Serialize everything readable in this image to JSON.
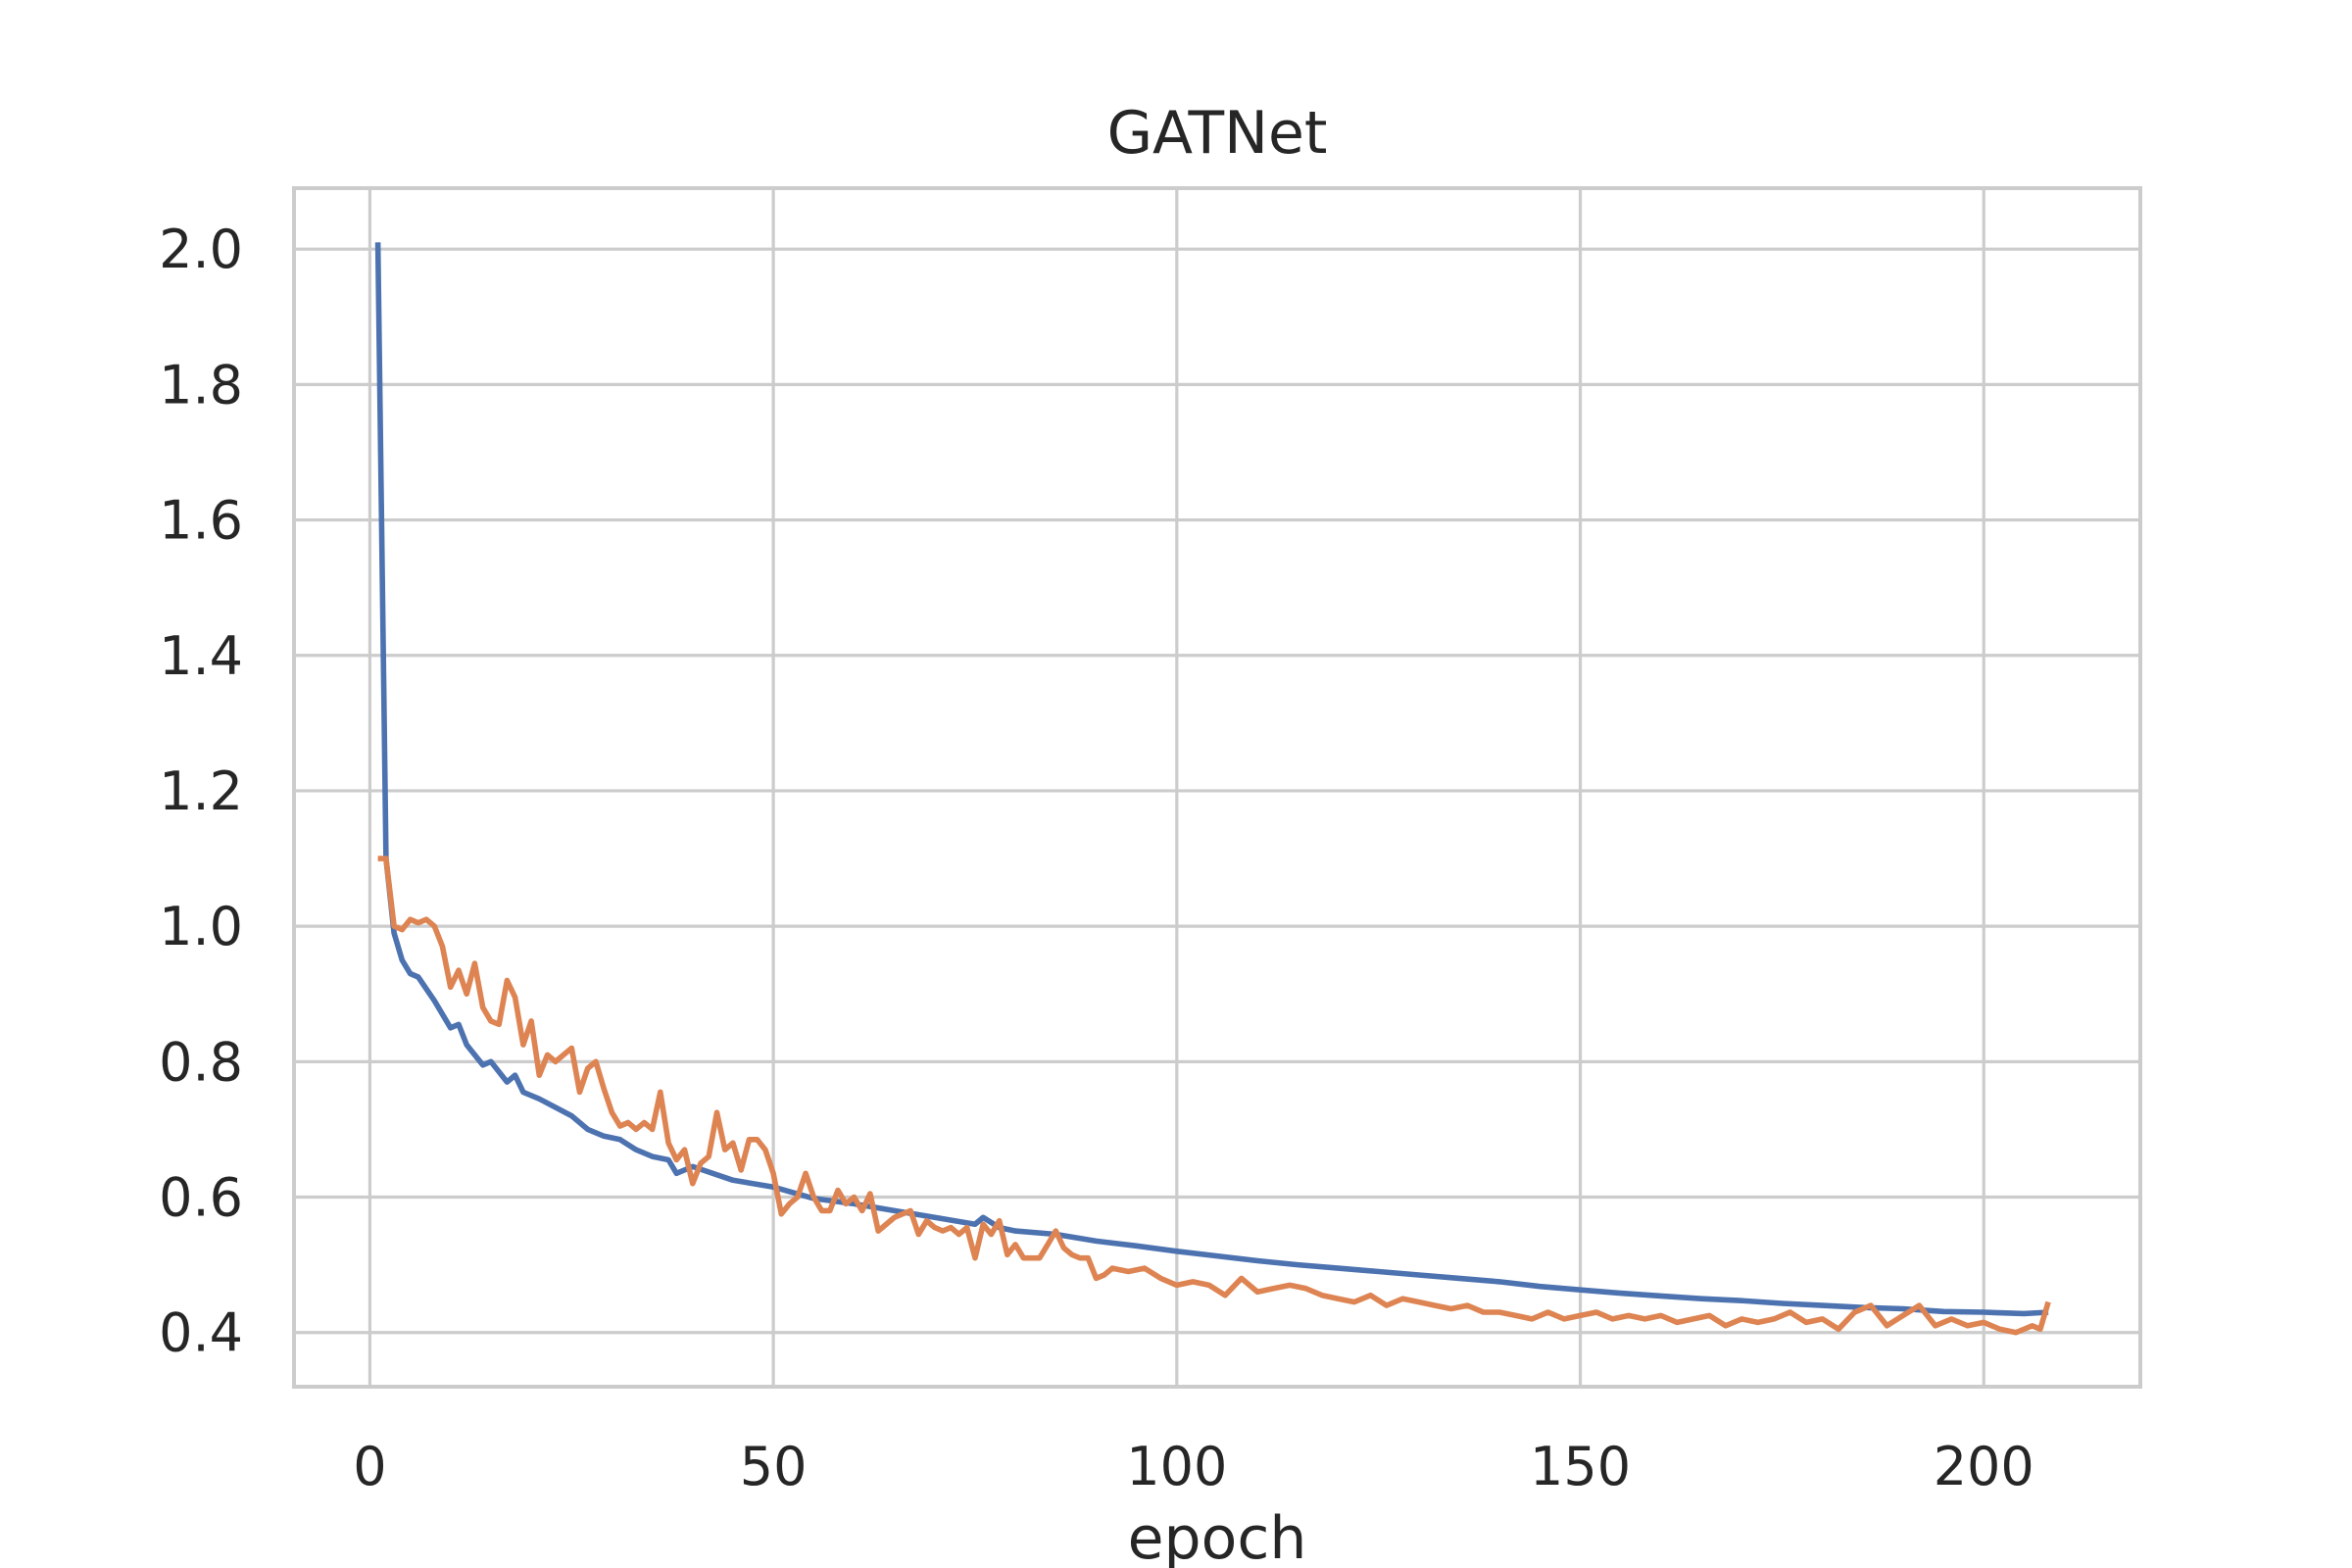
{
  "chart_data": {
    "type": "line",
    "title": "GATNet",
    "xlabel": "epoch",
    "ylabel": "",
    "xlim": [
      -9.4,
      219.4
    ],
    "ylim": [
      0.32,
      2.09
    ],
    "xticks": [
      0,
      50,
      100,
      150,
      200
    ],
    "yticks": [
      0.4,
      0.6,
      0.8,
      1.0,
      1.2,
      1.4,
      1.6,
      1.8,
      2.0
    ],
    "xtick_labels": [
      "0",
      "50",
      "100",
      "150",
      "200"
    ],
    "ytick_labels": [
      "0.4",
      "0.6",
      "0.8",
      "1.0",
      "1.2",
      "1.4",
      "1.6",
      "1.8",
      "2.0"
    ],
    "grid": true,
    "legend": "none",
    "series": [
      {
        "color": "#4c72b0",
        "points": [
          [
            1,
            2.01
          ],
          [
            2,
            1.1
          ],
          [
            3,
            0.99
          ],
          [
            4,
            0.95
          ],
          [
            5,
            0.93
          ],
          [
            6,
            0.925
          ],
          [
            8,
            0.89
          ],
          [
            10,
            0.85
          ],
          [
            11,
            0.855
          ],
          [
            12,
            0.825
          ],
          [
            14,
            0.795
          ],
          [
            15,
            0.8
          ],
          [
            17,
            0.77
          ],
          [
            18,
            0.78
          ],
          [
            19,
            0.755
          ],
          [
            21,
            0.745
          ],
          [
            25,
            0.72
          ],
          [
            27,
            0.7
          ],
          [
            29,
            0.69
          ],
          [
            31,
            0.685
          ],
          [
            33,
            0.67
          ],
          [
            35,
            0.66
          ],
          [
            37,
            0.655
          ],
          [
            38,
            0.635
          ],
          [
            40,
            0.645
          ],
          [
            45,
            0.625
          ],
          [
            50,
            0.615
          ],
          [
            55,
            0.598
          ],
          [
            60,
            0.59
          ],
          [
            65,
            0.58
          ],
          [
            70,
            0.57
          ],
          [
            75,
            0.56
          ],
          [
            76,
            0.57
          ],
          [
            78,
            0.555
          ],
          [
            80,
            0.55
          ],
          [
            85,
            0.545
          ],
          [
            90,
            0.535
          ],
          [
            95,
            0.528
          ],
          [
            100,
            0.52
          ],
          [
            105,
            0.513
          ],
          [
            110,
            0.506
          ],
          [
            115,
            0.5
          ],
          [
            120,
            0.495
          ],
          [
            125,
            0.49
          ],
          [
            130,
            0.485
          ],
          [
            135,
            0.48
          ],
          [
            140,
            0.475
          ],
          [
            145,
            0.468
          ],
          [
            150,
            0.463
          ],
          [
            155,
            0.458
          ],
          [
            160,
            0.454
          ],
          [
            165,
            0.45
          ],
          [
            170,
            0.447
          ],
          [
            175,
            0.443
          ],
          [
            180,
            0.44
          ],
          [
            185,
            0.437
          ],
          [
            190,
            0.435
          ],
          [
            195,
            0.431
          ],
          [
            200,
            0.43
          ],
          [
            205,
            0.428
          ],
          [
            208,
            0.43
          ]
        ]
      },
      {
        "color": "#dd8452",
        "points": [
          [
            1,
            1.1
          ],
          [
            2,
            1.1
          ],
          [
            3,
            1.0
          ],
          [
            4,
            0.995
          ],
          [
            5,
            1.01
          ],
          [
            6,
            1.005
          ],
          [
            7,
            1.01
          ],
          [
            8,
            1.0
          ],
          [
            9,
            0.97
          ],
          [
            10,
            0.91
          ],
          [
            11,
            0.935
          ],
          [
            12,
            0.9
          ],
          [
            13,
            0.945
          ],
          [
            14,
            0.88
          ],
          [
            15,
            0.86
          ],
          [
            16,
            0.855
          ],
          [
            17,
            0.92
          ],
          [
            18,
            0.895
          ],
          [
            19,
            0.825
          ],
          [
            20,
            0.86
          ],
          [
            21,
            0.78
          ],
          [
            22,
            0.81
          ],
          [
            23,
            0.8
          ],
          [
            24,
            0.81
          ],
          [
            25,
            0.82
          ],
          [
            26,
            0.755
          ],
          [
            27,
            0.79
          ],
          [
            28,
            0.8
          ],
          [
            29,
            0.76
          ],
          [
            30,
            0.725
          ],
          [
            31,
            0.705
          ],
          [
            32,
            0.71
          ],
          [
            33,
            0.7
          ],
          [
            34,
            0.71
          ],
          [
            35,
            0.7
          ],
          [
            36,
            0.755
          ],
          [
            37,
            0.68
          ],
          [
            38,
            0.655
          ],
          [
            39,
            0.67
          ],
          [
            40,
            0.62
          ],
          [
            41,
            0.65
          ],
          [
            42,
            0.66
          ],
          [
            43,
            0.725
          ],
          [
            44,
            0.67
          ],
          [
            45,
            0.68
          ],
          [
            46,
            0.64
          ],
          [
            47,
            0.685
          ],
          [
            48,
            0.685
          ],
          [
            49,
            0.67
          ],
          [
            50,
            0.635
          ],
          [
            51,
            0.575
          ],
          [
            52,
            0.59
          ],
          [
            53,
            0.6
          ],
          [
            54,
            0.635
          ],
          [
            55,
            0.6
          ],
          [
            56,
            0.58
          ],
          [
            57,
            0.58
          ],
          [
            58,
            0.61
          ],
          [
            59,
            0.59
          ],
          [
            60,
            0.6
          ],
          [
            61,
            0.58
          ],
          [
            62,
            0.605
          ],
          [
            63,
            0.55
          ],
          [
            64,
            0.56
          ],
          [
            65,
            0.57
          ],
          [
            66,
            0.575
          ],
          [
            67,
            0.58
          ],
          [
            68,
            0.545
          ],
          [
            69,
            0.565
          ],
          [
            70,
            0.555
          ],
          [
            71,
            0.55
          ],
          [
            72,
            0.555
          ],
          [
            73,
            0.545
          ],
          [
            74,
            0.555
          ],
          [
            75,
            0.51
          ],
          [
            76,
            0.56
          ],
          [
            77,
            0.545
          ],
          [
            78,
            0.565
          ],
          [
            79,
            0.515
          ],
          [
            80,
            0.53
          ],
          [
            81,
            0.51
          ],
          [
            82,
            0.51
          ],
          [
            83,
            0.51
          ],
          [
            84,
            0.53
          ],
          [
            85,
            0.55
          ],
          [
            86,
            0.525
          ],
          [
            87,
            0.515
          ],
          [
            88,
            0.51
          ],
          [
            89,
            0.51
          ],
          [
            90,
            0.48
          ],
          [
            91,
            0.485
          ],
          [
            92,
            0.495
          ],
          [
            94,
            0.49
          ],
          [
            96,
            0.495
          ],
          [
            98,
            0.48
          ],
          [
            100,
            0.47
          ],
          [
            102,
            0.475
          ],
          [
            104,
            0.47
          ],
          [
            106,
            0.455
          ],
          [
            108,
            0.48
          ],
          [
            110,
            0.46
          ],
          [
            112,
            0.465
          ],
          [
            114,
            0.47
          ],
          [
            116,
            0.465
          ],
          [
            118,
            0.455
          ],
          [
            120,
            0.45
          ],
          [
            122,
            0.445
          ],
          [
            124,
            0.455
          ],
          [
            126,
            0.44
          ],
          [
            128,
            0.45
          ],
          [
            130,
            0.445
          ],
          [
            132,
            0.44
          ],
          [
            134,
            0.435
          ],
          [
            136,
            0.44
          ],
          [
            138,
            0.43
          ],
          [
            140,
            0.43
          ],
          [
            142,
            0.425
          ],
          [
            144,
            0.42
          ],
          [
            146,
            0.43
          ],
          [
            148,
            0.42
          ],
          [
            150,
            0.425
          ],
          [
            152,
            0.43
          ],
          [
            154,
            0.42
          ],
          [
            156,
            0.425
          ],
          [
            158,
            0.42
          ],
          [
            160,
            0.425
          ],
          [
            162,
            0.415
          ],
          [
            164,
            0.42
          ],
          [
            166,
            0.425
          ],
          [
            168,
            0.41
          ],
          [
            170,
            0.42
          ],
          [
            172,
            0.415
          ],
          [
            174,
            0.42
          ],
          [
            176,
            0.43
          ],
          [
            178,
            0.415
          ],
          [
            180,
            0.42
          ],
          [
            182,
            0.405
          ],
          [
            184,
            0.43
          ],
          [
            186,
            0.44
          ],
          [
            188,
            0.41
          ],
          [
            190,
            0.425
          ],
          [
            192,
            0.44
          ],
          [
            194,
            0.41
          ],
          [
            196,
            0.42
          ],
          [
            198,
            0.41
          ],
          [
            200,
            0.415
          ],
          [
            202,
            0.405
          ],
          [
            204,
            0.4
          ],
          [
            206,
            0.41
          ],
          [
            207,
            0.405
          ],
          [
            208,
            0.445
          ]
        ]
      }
    ]
  }
}
